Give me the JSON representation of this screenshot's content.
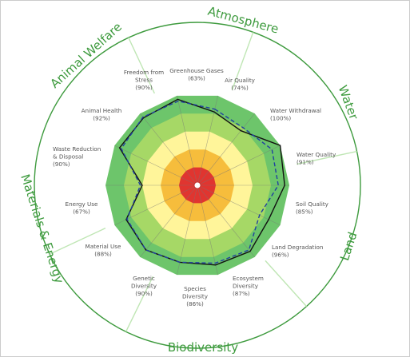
{
  "chart_data": {
    "type": "radar",
    "title": "",
    "scale_min": 0,
    "scale_max": 100,
    "rings": [
      {
        "upper": 20,
        "color": "#e03530"
      },
      {
        "upper": 40,
        "color": "#f6bd3c"
      },
      {
        "upper": 60,
        "color": "#fff59a"
      },
      {
        "upper": 80,
        "color": "#a6d866"
      },
      {
        "upper": 100,
        "color": "#6dc56b"
      }
    ],
    "indicators": [
      {
        "name": "Greenhouse Gases",
        "value_label": "(63%)",
        "solid": 82,
        "dashed": 85
      },
      {
        "name": "Air Quality",
        "value_label": "(74%)",
        "solid": 76,
        "dashed": 80
      },
      {
        "name": "Water Withdrawal",
        "value_label": "(100%)",
        "solid": 100,
        "dashed": 90
      },
      {
        "name": "Water Quality",
        "value_label": "(91%)",
        "solid": 95,
        "dashed": 88
      },
      {
        "name": "Soil Quality",
        "value_label": "(85%)",
        "solid": 86,
        "dashed": 75
      },
      {
        "name": "Land Degradation",
        "value_label": "(96%)",
        "solid": 92,
        "dashed": 90
      },
      {
        "name": "Ecosystem Diversity",
        "value_label": "(87%)",
        "solid": 89,
        "dashed": 87
      },
      {
        "name": "Species Diversity",
        "value_label": "(86%)",
        "solid": 86,
        "dashed": 86
      },
      {
        "name": "Genetic Diversity",
        "value_label": "(90%)",
        "solid": 90,
        "dashed": 90
      },
      {
        "name": "Material Use",
        "value_label": "(88%)",
        "solid": 86,
        "dashed": 85
      },
      {
        "name": "Energy Use",
        "value_label": "(67%)",
        "solid": 60,
        "dashed": 62
      },
      {
        "name": "Waste Reduction & Disposal",
        "value_label": "(90%)",
        "solid": 94,
        "dashed": 92
      },
      {
        "name": "Animal Health",
        "value_label": "(92%)",
        "solid": 94,
        "dashed": 95
      },
      {
        "name": "Freedom from Stress",
        "value_label": "(90%)",
        "solid": 96,
        "dashed": 94
      }
    ],
    "categories": [
      {
        "name": "Atmosphere",
        "color": "#3d9a3d"
      },
      {
        "name": "Water",
        "color": "#3d9a3d"
      },
      {
        "name": "Land",
        "color": "#3d9a3d"
      },
      {
        "name": "Biodiversity",
        "color": "#3d9a3d"
      },
      {
        "name": "Materials & Energy",
        "color": "#3d9a3d"
      },
      {
        "name": "Animal Welfare",
        "color": "#3d9a3d"
      }
    ],
    "series": [
      {
        "style": "solid",
        "color": "#111111"
      },
      {
        "style": "dashed",
        "color": "#2140a0"
      }
    ]
  }
}
